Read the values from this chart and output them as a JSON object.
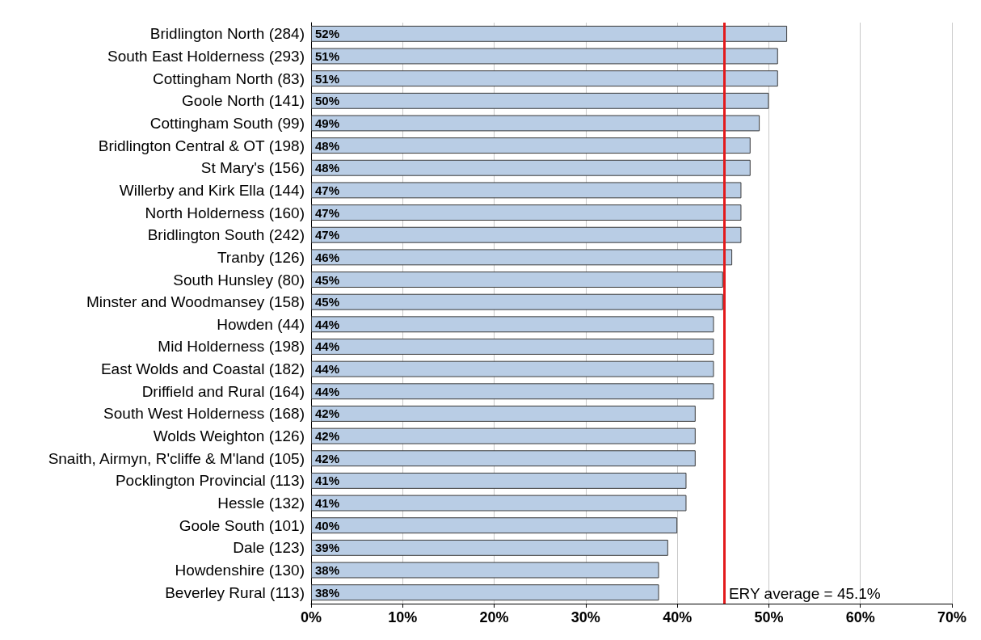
{
  "chart_data": {
    "type": "bar",
    "orientation": "horizontal",
    "categories": [
      "Bridlington North (284)",
      "South East Holderness (293)",
      "Cottingham North (83)",
      "Goole North (141)",
      "Cottingham South (99)",
      "Bridlington Central & OT (198)",
      "St Mary's (156)",
      "Willerby and Kirk Ella (144)",
      "North Holderness (160)",
      "Bridlington South (242)",
      "Tranby (126)",
      "South Hunsley (80)",
      "Minster and Woodmansey (158)",
      "Howden (44)",
      "Mid Holderness (198)",
      "East Wolds and Coastal (182)",
      "Driffield and Rural (164)",
      "South West Holderness (168)",
      "Wolds Weighton (126)",
      "Snaith, Airmyn, R'cliffe & M'land (105)",
      "Pocklington Provincial (113)",
      "Hessle (132)",
      "Goole South (101)",
      "Dale (123)",
      "Howdenshire (130)",
      "Beverley Rural (113)"
    ],
    "values": [
      52,
      51,
      51,
      50,
      49,
      48,
      48,
      47,
      47,
      47,
      46,
      45,
      45,
      44,
      44,
      44,
      44,
      42,
      42,
      42,
      41,
      41,
      40,
      39,
      38,
      38
    ],
    "value_labels": [
      "52%",
      "51%",
      "51%",
      "50%",
      "49%",
      "48%",
      "48%",
      "47%",
      "47%",
      "47%",
      "46%",
      "45%",
      "45%",
      "44%",
      "44%",
      "44%",
      "44%",
      "42%",
      "42%",
      "42%",
      "41%",
      "41%",
      "40%",
      "39%",
      "38%",
      "38%"
    ],
    "color": "#b9cde5",
    "xlim": [
      0,
      70
    ],
    "xticks": [
      {
        "value": 0,
        "label": "0%"
      },
      {
        "value": 10,
        "label": "10%"
      },
      {
        "value": 20,
        "label": "20%"
      },
      {
        "value": 30,
        "label": "30%"
      },
      {
        "value": 40,
        "label": "40%"
      },
      {
        "value": 50,
        "label": "50%"
      },
      {
        "value": 60,
        "label": "60%"
      },
      {
        "value": 70,
        "label": "70%"
      }
    ],
    "grid": "x",
    "ref_lines": [
      {
        "axis": "x",
        "value": 45.1,
        "label": "ERY average = 45.1%",
        "color": "#e31a1c"
      }
    ]
  }
}
